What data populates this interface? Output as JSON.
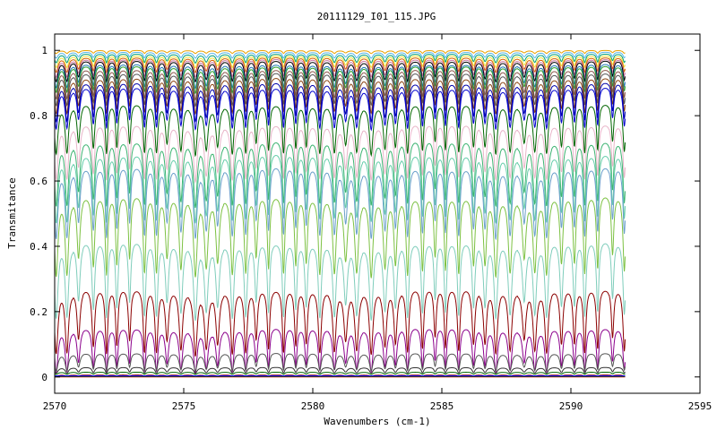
{
  "chart_data": {
    "type": "line",
    "title": "20111129_I01_115.JPG",
    "xlabel": "Wavenumbers (cm-1)",
    "ylabel": "Transmitance",
    "xlim": [
      2570,
      2595
    ],
    "ylim": [
      -0.05,
      1.05
    ],
    "x_data_range": [
      2570,
      2592.1
    ],
    "xticks": [
      2570,
      2575,
      2580,
      2585,
      2590,
      2595
    ],
    "yticks": [
      0,
      0.2,
      0.4,
      0.6,
      0.8,
      1
    ],
    "ytick_labels": [
      "0",
      "0.2",
      "0.4",
      "0.6",
      "0.8",
      "1"
    ],
    "xtick_labels": [
      "2570",
      "2575",
      "2580",
      "2585",
      "2590",
      "2595"
    ],
    "grid": false,
    "legend": "none",
    "line_spacing_cm1": 0.49,
    "series": [
      {
        "baseline": 1.0,
        "dip_depth": 0.01,
        "color": "#e8a000"
      },
      {
        "baseline": 0.995,
        "dip_depth": 0.02,
        "color": "#56b4e9"
      },
      {
        "baseline": 0.99,
        "dip_depth": 0.03,
        "color": "#009e73"
      },
      {
        "baseline": 0.985,
        "dip_depth": 0.04,
        "color": "#f0e442"
      },
      {
        "baseline": 0.98,
        "dip_depth": 0.05,
        "color": "#d55e00"
      },
      {
        "baseline": 0.975,
        "dip_depth": 0.06,
        "color": "#cc79a7"
      },
      {
        "baseline": 0.97,
        "dip_depth": 0.07,
        "color": "#000000"
      },
      {
        "baseline": 0.96,
        "dip_depth": 0.08,
        "color": "#1f77b4"
      },
      {
        "baseline": 0.955,
        "dip_depth": 0.09,
        "color": "#2ca02c"
      },
      {
        "baseline": 0.945,
        "dip_depth": 0.1,
        "color": "#8c564b"
      },
      {
        "baseline": 0.935,
        "dip_depth": 0.11,
        "color": "#555555"
      },
      {
        "baseline": 0.92,
        "dip_depth": 0.12,
        "color": "#8b4513"
      },
      {
        "baseline": 0.905,
        "dip_depth": 0.13,
        "color": "#0000aa"
      },
      {
        "baseline": 0.89,
        "dip_depth": 0.14,
        "color": "#0000cc"
      },
      {
        "baseline": 0.84,
        "dip_depth": 0.17,
        "color": "#006400"
      },
      {
        "baseline": 0.78,
        "dip_depth": 0.19,
        "color": "#e8b4c8"
      },
      {
        "baseline": 0.73,
        "dip_depth": 0.22,
        "color": "#3cb371"
      },
      {
        "baseline": 0.69,
        "dip_depth": 0.23,
        "color": "#66cdaa"
      },
      {
        "baseline": 0.65,
        "dip_depth": 0.24,
        "color": "#6a9fca"
      },
      {
        "baseline": 0.56,
        "dip_depth": 0.27,
        "color": "#7cc142"
      },
      {
        "baseline": 0.42,
        "dip_depth": 0.26,
        "color": "#7fcdbb"
      },
      {
        "baseline": 0.275,
        "dip_depth": 0.22,
        "color": "#8b0000"
      },
      {
        "baseline": 0.155,
        "dip_depth": 0.15,
        "color": "#8b008b"
      },
      {
        "baseline": 0.075,
        "dip_depth": 0.06,
        "color": "#555555"
      },
      {
        "baseline": 0.03,
        "dip_depth": 0.02,
        "color": "#333333"
      },
      {
        "baseline": 0.015,
        "dip_depth": 0.008,
        "color": "#006400"
      },
      {
        "baseline": 0.006,
        "dip_depth": 0.004,
        "color": "#8b0000"
      }
    ]
  }
}
